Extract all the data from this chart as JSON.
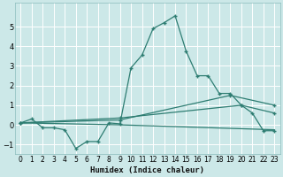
{
  "xlabel": "Humidex (Indice chaleur)",
  "bg_color": "#cce8e8",
  "grid_color": "#ffffff",
  "line_color": "#2e7d72",
  "xlim": [
    -0.5,
    23.5
  ],
  "ylim": [
    -1.5,
    6.2
  ],
  "yticks": [
    -1,
    0,
    1,
    2,
    3,
    4,
    5
  ],
  "xticks": [
    0,
    1,
    2,
    3,
    4,
    5,
    6,
    7,
    8,
    9,
    10,
    11,
    12,
    13,
    14,
    15,
    16,
    17,
    18,
    19,
    20,
    21,
    22,
    23
  ],
  "series1_x": [
    0,
    1,
    2,
    3,
    4,
    5,
    6,
    7,
    8,
    9,
    10,
    11,
    12,
    13,
    14,
    15,
    16,
    17,
    18,
    19,
    20,
    21,
    22,
    23
  ],
  "series1_y": [
    0.1,
    0.3,
    -0.15,
    -0.15,
    -0.25,
    -1.2,
    -0.85,
    -0.85,
    0.1,
    0.05,
    2.9,
    3.55,
    4.9,
    5.2,
    5.55,
    3.75,
    2.5,
    2.5,
    1.6,
    1.6,
    1.0,
    0.6,
    -0.3,
    -0.3
  ],
  "series2_x": [
    0,
    9,
    23
  ],
  "series2_y": [
    0.1,
    0.0,
    -0.25
  ],
  "series3_x": [
    0,
    9,
    19,
    23
  ],
  "series3_y": [
    0.1,
    0.25,
    1.5,
    1.0
  ],
  "series4_x": [
    0,
    9,
    20,
    23
  ],
  "series4_y": [
    0.1,
    0.35,
    1.0,
    0.6
  ]
}
